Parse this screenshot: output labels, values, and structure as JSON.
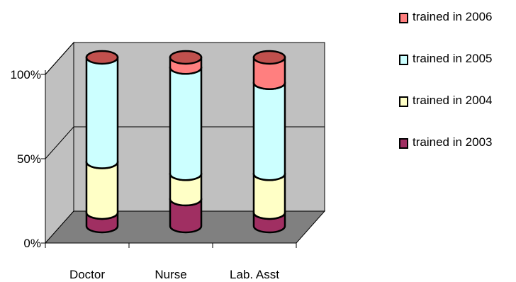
{
  "chart_data": {
    "type": "bar",
    "stacked": true,
    "percent": true,
    "style": "3d-cylinder",
    "categories": [
      "Doctor",
      "Nurse",
      "Lab. Asst"
    ],
    "series": [
      {
        "name": "trained in 2003",
        "values": [
          8,
          16,
          8
        ],
        "color": "#A02F62"
      },
      {
        "name": "trained in 2004",
        "values": [
          30,
          15,
          23
        ],
        "color": "#FFFFC6"
      },
      {
        "name": "trained in 2005",
        "values": [
          62,
          63,
          54
        ],
        "color": "#CCFFFF"
      },
      {
        "name": "trained in 2006",
        "values": [
          0,
          6,
          15
        ],
        "color": "#FF7F7F"
      }
    ],
    "yticks": [
      "0%",
      "50%",
      "100%"
    ],
    "ylim": [
      0,
      100
    ],
    "grid": true,
    "legend": "right",
    "colors": {
      "wall": "#C0C0C0",
      "floor": "#808080",
      "top_cap": "#C0504D"
    }
  }
}
